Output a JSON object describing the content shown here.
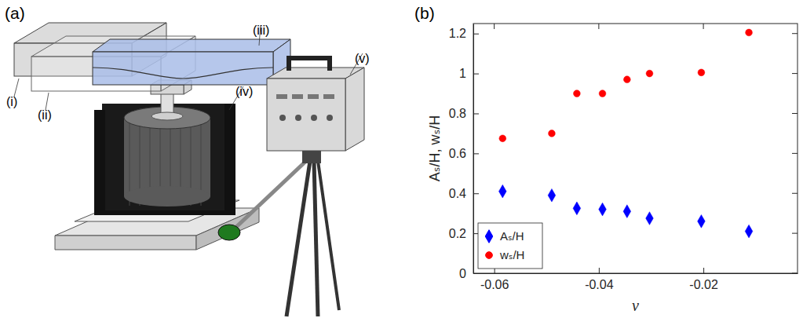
{
  "illustration": {
    "label": "(a)",
    "parts": [
      "(i)",
      "(ii)",
      "(iii)",
      "(iv)",
      "(v)"
    ]
  },
  "chart_data": {
    "type": "scatter",
    "annotations": [
      {
        "text": "(b)"
      }
    ],
    "x_label": "ν",
    "y_label": "Aₛ/H, wₛ/H",
    "x": [
      -0.0584,
      -0.049,
      -0.0442,
      -0.0393,
      -0.0346,
      -0.0303,
      -0.0204,
      -0.0113
    ],
    "series": [
      {
        "name": "Aₛ/H",
        "color": "#0000ff",
        "marker": "diamond",
        "values": [
          0.41,
          0.39,
          0.325,
          0.32,
          0.31,
          0.275,
          0.26,
          0.21
        ]
      },
      {
        "name": "wₛ/H",
        "color": "#ff0000",
        "marker": "circle",
        "values": [
          0.675,
          0.7,
          0.9,
          0.9,
          0.97,
          1.0,
          1.005,
          1.205
        ]
      }
    ],
    "xlim": [
      -0.064,
      -0.002
    ],
    "xticks": [
      -0.06,
      -0.04,
      -0.02
    ],
    "ylim": [
      0,
      1.25
    ],
    "yticks": [
      0,
      0.2,
      0.4,
      0.6,
      0.8,
      1,
      1.2
    ],
    "grid": false,
    "legend": "lower-left"
  }
}
